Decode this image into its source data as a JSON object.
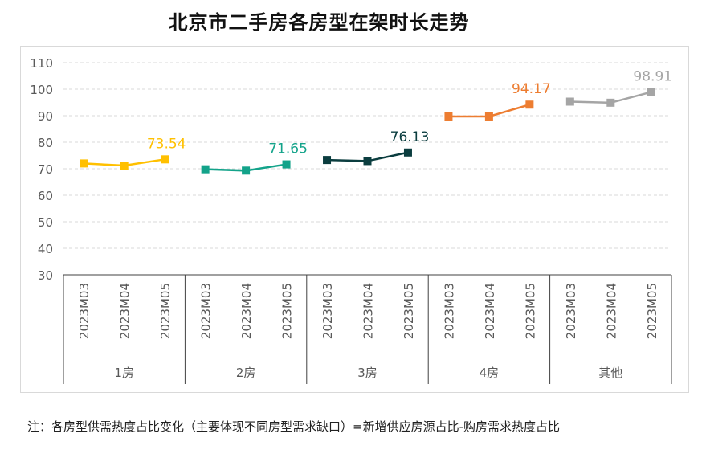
{
  "title": "北京市二手房各房型在架时长走势",
  "note": "注：各房型供需热度占比变化（主要体现不同房型需求缺口）=新增供应房源占比-购房需求热度占比",
  "chart_data": {
    "type": "line",
    "title": "北京市二手房各房型在架时长走势",
    "ylim": [
      30,
      110
    ],
    "yticks": [
      30,
      40,
      50,
      60,
      70,
      80,
      90,
      100,
      110
    ],
    "grid": true,
    "months": [
      "2023M03",
      "2023M04",
      "2023M05"
    ],
    "groups": [
      {
        "name": "1房",
        "color": "#FFC000",
        "values": [
          72.0,
          71.2,
          73.54
        ],
        "label": "73.54"
      },
      {
        "name": "2房",
        "color": "#13A38A",
        "values": [
          69.8,
          69.3,
          71.65
        ],
        "label": "71.65"
      },
      {
        "name": "3房",
        "color": "#0B3D3F",
        "values": [
          73.3,
          72.9,
          76.13
        ],
        "label": "76.13"
      },
      {
        "name": "4房",
        "color": "#ED7D31",
        "values": [
          89.7,
          89.7,
          94.17
        ],
        "label": "94.17"
      },
      {
        "name": "其他",
        "color": "#A5A5A5",
        "values": [
          95.3,
          94.9,
          98.91
        ],
        "label": "98.91"
      }
    ]
  }
}
